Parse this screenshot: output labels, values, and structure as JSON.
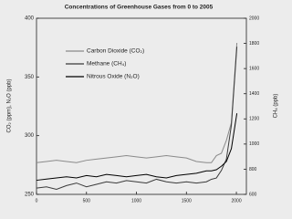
{
  "chart_data": {
    "type": "line",
    "title": "Concentrations of Greenhouse Gases from 0 to 2005",
    "y_label": "CO₂ (ppm), N₂O (ppb)",
    "y2_label": "CH₄ (ppb)",
    "x": [
      0,
      100,
      200,
      300,
      400,
      500,
      600,
      700,
      800,
      900,
      1000,
      1100,
      1200,
      1300,
      1400,
      1500,
      1600,
      1700,
      1750,
      1800,
      1850,
      1900,
      1950,
      2005
    ],
    "series": [
      {
        "name": "Carbon Dioxide (CO₂)",
        "color": "#8a8a8a",
        "values": [
          277,
          278,
          279,
          278,
          277,
          279,
          280,
          281,
          282,
          283,
          282,
          281,
          282,
          283,
          282,
          281,
          278,
          277,
          277,
          283,
          285,
          296,
          311,
          379
        ]
      },
      {
        "name": "Methane (CH₄)",
        "color": "#3a3a3a",
        "axis": "y2",
        "values": [
          650,
          660,
          640,
          670,
          690,
          660,
          680,
          700,
          690,
          710,
          700,
          690,
          720,
          700,
          690,
          700,
          690,
          700,
          720,
          730,
          790,
          880,
          1150,
          1774
        ]
      },
      {
        "name": "Nitrous Oxide (N₂O)",
        "color": "#000000",
        "values": [
          262,
          263,
          264,
          265,
          264,
          266,
          265,
          267,
          266,
          265,
          266,
          267,
          265,
          264,
          266,
          267,
          268,
          270,
          270,
          271,
          274,
          278,
          289,
          319
        ]
      }
    ],
    "xlim": [
      0,
      2100
    ],
    "xticks": [
      0,
      500,
      1000,
      1500,
      2000
    ],
    "ylim": [
      250,
      400
    ],
    "yticks": [
      250,
      300,
      350,
      400
    ],
    "y2lim": [
      600,
      2000
    ],
    "y2ticks": [
      600,
      800,
      1000,
      1200,
      1400,
      1600,
      1800,
      2000
    ],
    "grid": false
  }
}
